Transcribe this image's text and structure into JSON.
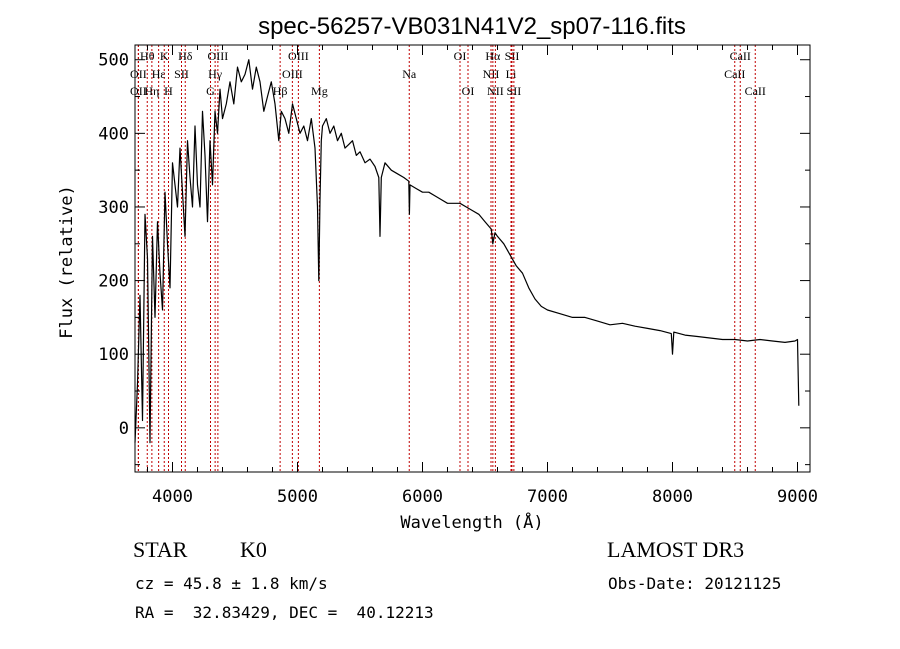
{
  "chart_data": {
    "type": "line",
    "title": "spec-56257-VB031N41V2_sp07-116.fits",
    "xlabel": "Wavelength (Å)",
    "ylabel": "Flux (relative)",
    "xlim": [
      3700,
      9100
    ],
    "ylim": [
      -60,
      520
    ],
    "xticks": [
      4000,
      5000,
      6000,
      7000,
      8000,
      9000
    ],
    "yticks": [
      0,
      100,
      200,
      300,
      400,
      500
    ],
    "series": [
      {
        "name": "flux",
        "x": [
          3700,
          3720,
          3740,
          3760,
          3780,
          3800,
          3820,
          3840,
          3860,
          3880,
          3900,
          3920,
          3940,
          3960,
          3980,
          4000,
          4020,
          4040,
          4060,
          4080,
          4100,
          4120,
          4140,
          4160,
          4180,
          4200,
          4220,
          4240,
          4260,
          4280,
          4300,
          4320,
          4340,
          4360,
          4380,
          4400,
          4430,
          4460,
          4490,
          4520,
          4550,
          4580,
          4610,
          4640,
          4670,
          4700,
          4730,
          4760,
          4790,
          4820,
          4850,
          4870,
          4900,
          4930,
          4960,
          4990,
          5020,
          5050,
          5080,
          5110,
          5140,
          5160,
          5170,
          5180,
          5190,
          5200,
          5230,
          5260,
          5290,
          5320,
          5350,
          5380,
          5410,
          5440,
          5470,
          5500,
          5540,
          5580,
          5620,
          5650,
          5660,
          5670,
          5700,
          5750,
          5800,
          5850,
          5890,
          5895,
          5900,
          5950,
          6000,
          6050,
          6100,
          6150,
          6200,
          6250,
          6300,
          6350,
          6400,
          6450,
          6500,
          6550,
          6562,
          6580,
          6600,
          6650,
          6700,
          6750,
          6800,
          6850,
          6900,
          6950,
          7000,
          7100,
          7200,
          7300,
          7400,
          7500,
          7600,
          7700,
          7800,
          7900,
          7990,
          8000,
          8010,
          8100,
          8200,
          8300,
          8400,
          8500,
          8600,
          8700,
          8800,
          8900,
          8980,
          9000,
          9010
        ],
        "values": [
          -20,
          60,
          180,
          10,
          290,
          230,
          -20,
          260,
          150,
          280,
          210,
          160,
          320,
          250,
          190,
          360,
          330,
          300,
          380,
          320,
          260,
          390,
          340,
          300,
          410,
          330,
          300,
          430,
          370,
          280,
          390,
          330,
          430,
          400,
          460,
          420,
          440,
          470,
          440,
          490,
          470,
          480,
          500,
          460,
          490,
          470,
          430,
          450,
          470,
          440,
          390,
          430,
          420,
          400,
          440,
          420,
          400,
          410,
          390,
          420,
          380,
          300,
          200,
          310,
          390,
          410,
          420,
          400,
          410,
          390,
          400,
          380,
          385,
          390,
          370,
          375,
          360,
          365,
          355,
          340,
          260,
          340,
          360,
          350,
          345,
          340,
          335,
          290,
          330,
          325,
          320,
          320,
          315,
          310,
          305,
          305,
          305,
          300,
          295,
          290,
          280,
          270,
          250,
          265,
          260,
          250,
          235,
          220,
          210,
          190,
          175,
          165,
          160,
          155,
          150,
          150,
          145,
          140,
          142,
          138,
          135,
          132,
          128,
          100,
          130,
          126,
          124,
          122,
          120,
          120,
          118,
          120,
          118,
          116,
          118,
          120,
          30
        ]
      }
    ],
    "lines": [
      {
        "label": "Hθ",
        "x": 3798,
        "row": 0
      },
      {
        "label": "OII",
        "x": 3727,
        "row": 1
      },
      {
        "label": "OII",
        "x": 3727,
        "row": 2
      },
      {
        "label": "K",
        "x": 3934,
        "row": 0
      },
      {
        "label": "H",
        "x": 3968,
        "row": 2
      },
      {
        "label": "Hε",
        "x": 3889,
        "row": 1
      },
      {
        "label": "Hη",
        "x": 3835,
        "row": 2
      },
      {
        "label": "SII",
        "x": 4072,
        "row": 1
      },
      {
        "label": "Hδ",
        "x": 4102,
        "row": 0
      },
      {
        "label": "G",
        "x": 4304,
        "row": 2
      },
      {
        "label": "Hγ",
        "x": 4341,
        "row": 1
      },
      {
        "label": "OIII",
        "x": 4363,
        "row": 0
      },
      {
        "label": "Hβ",
        "x": 4861,
        "row": 2
      },
      {
        "label": "OIII",
        "x": 4959,
        "row": 1
      },
      {
        "label": "OIII",
        "x": 5007,
        "row": 0
      },
      {
        "label": "Mg",
        "x": 5175,
        "row": 2
      },
      {
        "label": "Na",
        "x": 5894,
        "row": 1
      },
      {
        "label": "OI",
        "x": 6300,
        "row": 0
      },
      {
        "label": "OI",
        "x": 6364,
        "row": 2
      },
      {
        "label": "NII",
        "x": 6548,
        "row": 1
      },
      {
        "label": "Hα",
        "x": 6563,
        "row": 0
      },
      {
        "label": "NII",
        "x": 6583,
        "row": 2
      },
      {
        "label": "Li",
        "x": 6708,
        "row": 1
      },
      {
        "label": "SII",
        "x": 6716,
        "row": 0
      },
      {
        "label": "SII",
        "x": 6731,
        "row": 2
      },
      {
        "label": "CaII",
        "x": 8498,
        "row": 1
      },
      {
        "label": "CaII",
        "x": 8542,
        "row": 0
      },
      {
        "label": "CaII",
        "x": 8662,
        "row": 2
      }
    ]
  },
  "info": {
    "object_class": "STAR",
    "subclass": "K0",
    "survey": "LAMOST DR3",
    "redshift": "cz = 45.8 ± 1.8 km/s",
    "obs_date": "Obs-Date: 20121125",
    "coords": "RA =  32.83429, DEC =  40.12213"
  }
}
